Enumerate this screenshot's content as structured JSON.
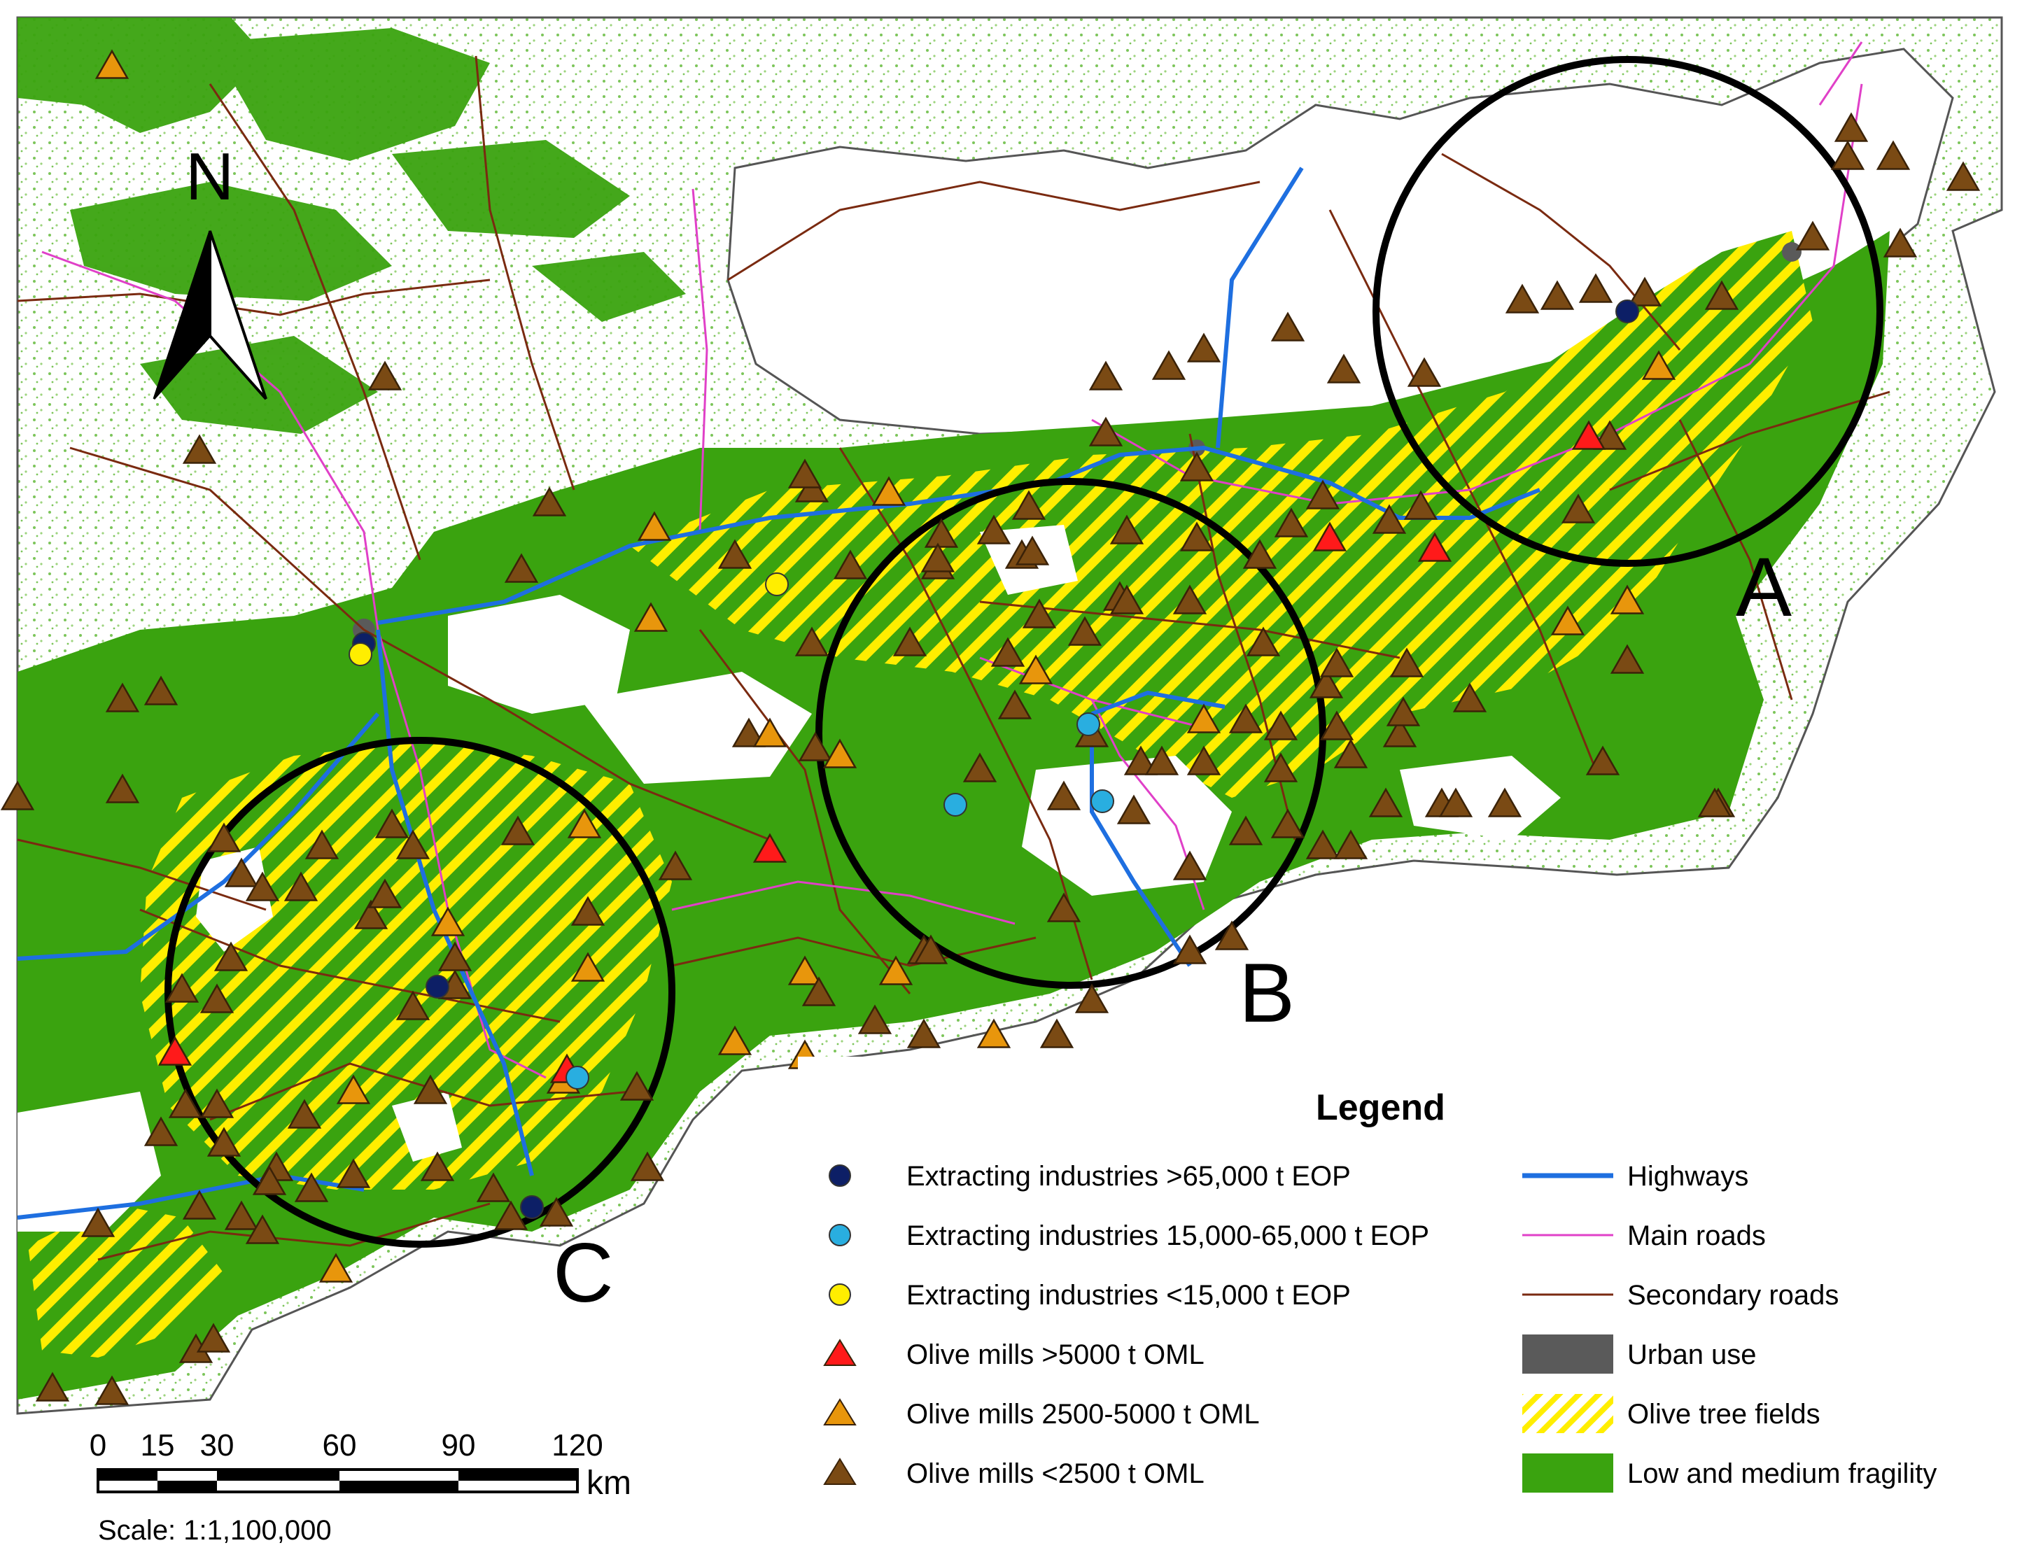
{
  "map": {
    "north_label": "N",
    "zones": [
      "A",
      "B",
      "C"
    ],
    "colors": {
      "fragility": "#3aa30f",
      "olive_stripe": "#ffee00",
      "urban": "#5a5a5a",
      "highway": "#1e6fe0",
      "main_road": "#e040c8",
      "secondary_road": "#7a2a10",
      "boundary": "#555555",
      "ring": "#000000"
    }
  },
  "legend": {
    "title": "Legend",
    "left_items": [
      {
        "symbol": "circle",
        "color": "#0d1f66",
        "label": "Extracting industries >65,000 t EOP"
      },
      {
        "symbol": "circle",
        "color": "#29aee0",
        "label": "Extracting industries 15,000-65,000 t EOP"
      },
      {
        "symbol": "circle",
        "color": "#ffee00",
        "label": "Extracting industries <15,000 t EOP"
      },
      {
        "symbol": "triangle",
        "color": "#ff1a1a",
        "label": "Olive mills >5000 t OML"
      },
      {
        "symbol": "triangle",
        "color": "#e8960c",
        "label": "Olive mills 2500-5000 t OML"
      },
      {
        "symbol": "triangle",
        "color": "#7a4a14",
        "label": "Olive mills <2500 t OML"
      }
    ],
    "right_items": [
      {
        "symbol": "line",
        "color": "#1e6fe0",
        "label": "Highways"
      },
      {
        "symbol": "thinline",
        "color": "#e040c8",
        "label": "Main roads"
      },
      {
        "symbol": "thinline",
        "color": "#7a2a10",
        "label": "Secondary roads"
      },
      {
        "symbol": "box",
        "color": "#5a5a5a",
        "label": "Urban use"
      },
      {
        "symbol": "stripes",
        "color": "#ffee00",
        "label": "Olive tree fields"
      },
      {
        "symbol": "box",
        "color": "#3aa30f",
        "label": "Low and medium fragility"
      }
    ]
  },
  "scale_bar": {
    "ticks": [
      "0",
      "15",
      "30",
      "60",
      "90",
      "120"
    ],
    "unit": "km",
    "scale_text": "Scale: 1:1,100,000"
  }
}
